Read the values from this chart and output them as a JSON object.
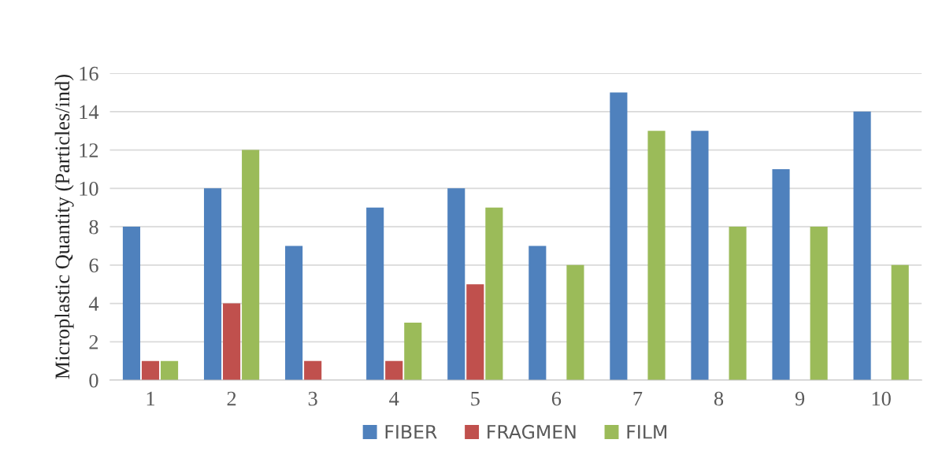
{
  "chart_data": {
    "type": "bar",
    "ylabel": "Microplastic Quantity (Particles/ind)",
    "categories": [
      "1",
      "2",
      "3",
      "4",
      "5",
      "6",
      "7",
      "8",
      "9",
      "10"
    ],
    "series": [
      {
        "name": "FIBER",
        "color": "#4f81bd",
        "values": [
          8,
          10,
          7,
          9,
          10,
          7,
          15,
          13,
          11,
          14
        ]
      },
      {
        "name": "FRAGMEN",
        "color": "#c0504d",
        "values": [
          1,
          4,
          1,
          1,
          5,
          0,
          0,
          0,
          0,
          0
        ]
      },
      {
        "name": "FILM",
        "color": "#9bbb59",
        "values": [
          1,
          12,
          0,
          3,
          9,
          6,
          13,
          8,
          8,
          6
        ]
      }
    ],
    "ylim": [
      0,
      16
    ],
    "yticks": [
      0,
      2,
      4,
      6,
      8,
      10,
      12,
      14,
      16
    ],
    "grid": "y",
    "legend": "bottom"
  }
}
